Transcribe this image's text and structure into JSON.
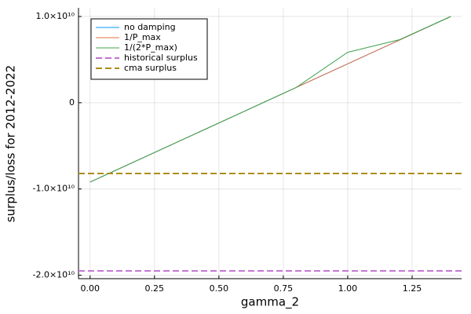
{
  "chart_data": {
    "type": "line",
    "xlabel": "gamma_2",
    "ylabel": "surplus/loss for 2012-2022",
    "x": [
      0,
      0.2,
      0.4,
      0.6,
      0.8,
      1.0,
      1.2,
      1.4
    ],
    "series": [
      {
        "name": "no damping",
        "color": "#009af9",
        "values": [
          -9200000000.0,
          -6460000000.0,
          -3720000000.0,
          -970000000.0,
          1770000000.0,
          4510000000.0,
          7250000000.0,
          10000000000.0
        ]
      },
      {
        "name": "1/P_max",
        "color": "#e26f46",
        "values": [
          -9200000000.0,
          -6460000000.0,
          -3720000000.0,
          -970000000.0,
          1770000000.0,
          4510000000.0,
          7250000000.0,
          10000000000.0
        ]
      },
      {
        "name": "1/(2*P_max)",
        "color": "#3da44d",
        "values": [
          -9200000000.0,
          -6460000000.0,
          -3720000000.0,
          -970000000.0,
          1770000000.0,
          5850000000.0,
          7300000000.0,
          10000000000.0
        ]
      }
    ],
    "hlines": [
      {
        "name": "historical surplus",
        "color": "#c271d2",
        "value": -19500000000.0
      },
      {
        "name": "cma surplus",
        "color": "#ac8e18",
        "value": -8200000000.0
      }
    ],
    "xlim": [
      -0.045,
      1.442
    ],
    "ylim": [
      -20400000000.0,
      11000000000.0
    ],
    "xticks": [
      {
        "value": 0,
        "label": "0.00"
      },
      0.25,
      {
        "value": 0.5,
        "label": "0.50"
      },
      0.75,
      {
        "value": 1,
        "label": "1.00"
      },
      1.25
    ],
    "yticks": [
      {
        "value": -20000000000.0,
        "label": "-2.0×10¹⁰"
      },
      {
        "value": -10000000000.0,
        "label": "-1.0×10¹⁰"
      },
      0,
      {
        "value": 10000000000.0,
        "label": "1.0×10¹⁰"
      }
    ],
    "grid": true,
    "legend": "top-left"
  }
}
